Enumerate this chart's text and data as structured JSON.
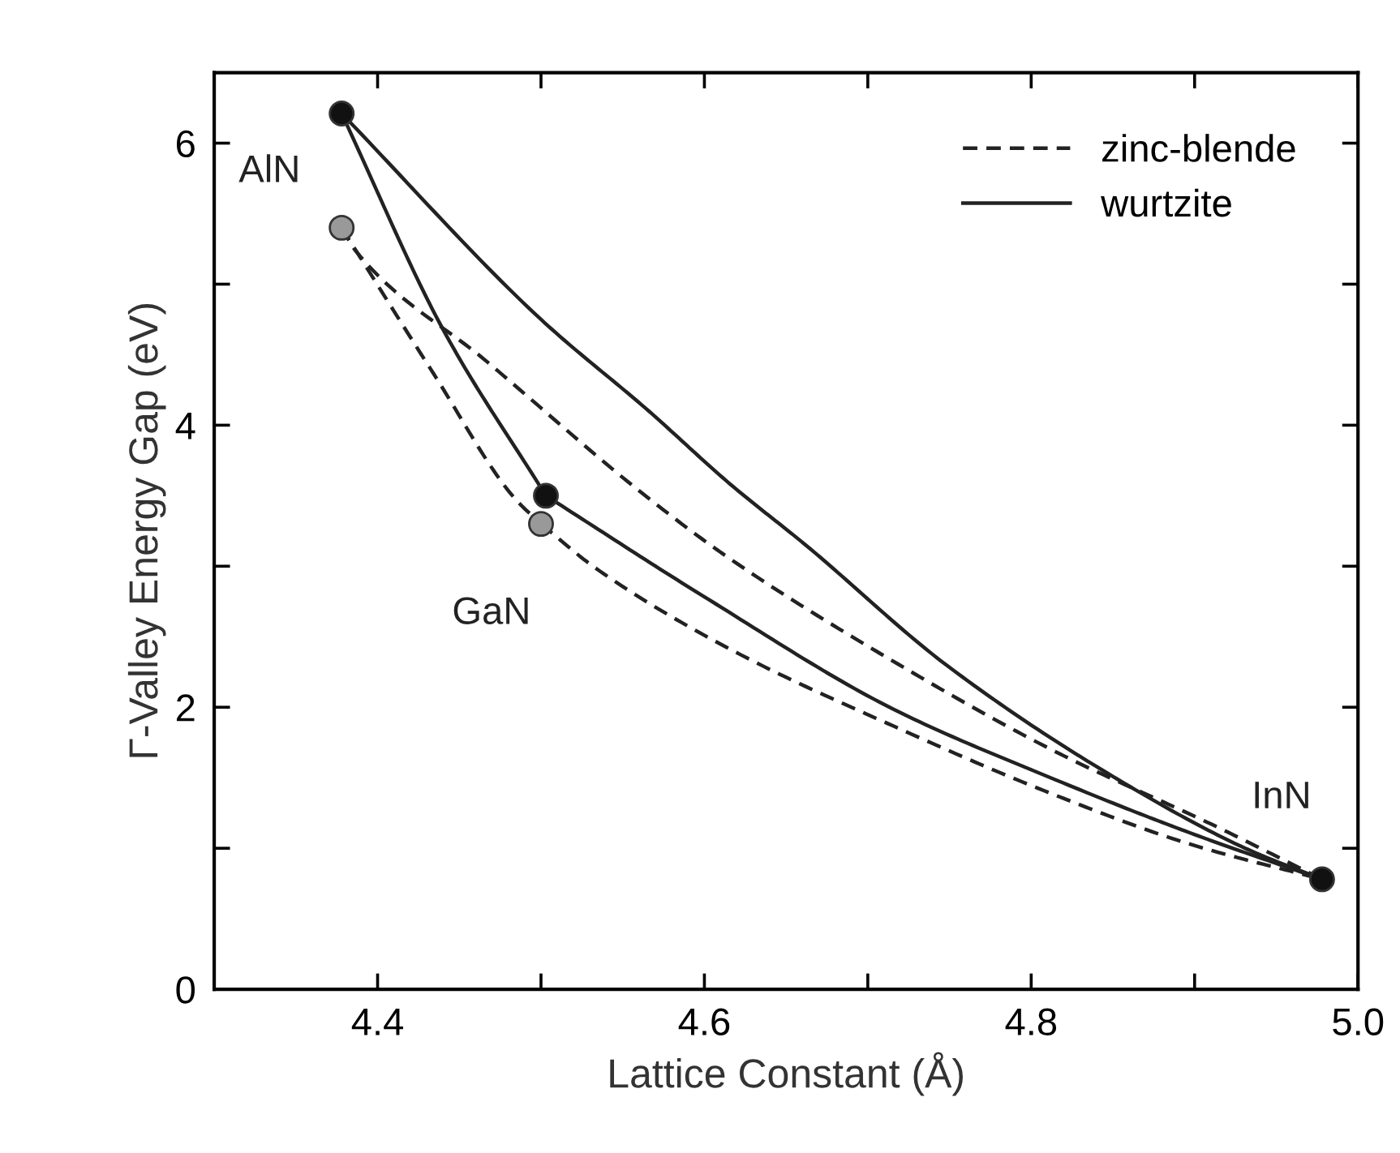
{
  "chart_data": {
    "type": "line",
    "xlabel": "Lattice Constant (Å)",
    "ylabel": "Γ-Valley Energy Gap (eV)",
    "xlim": [
      4.3,
      5.0
    ],
    "ylim": [
      0,
      6.5
    ],
    "xticks": [
      4.4,
      {
        "value": 4.5,
        "label": null
      },
      4.6,
      {
        "value": 4.7,
        "label": null
      },
      4.8,
      {
        "value": 4.9,
        "label": null
      },
      {
        "value": 5.0,
        "label": "5.0"
      }
    ],
    "yticks": [
      0,
      {
        "value": 1,
        "label": null
      },
      2,
      {
        "value": 3,
        "label": null
      },
      4,
      {
        "value": 5,
        "label": null
      },
      6
    ],
    "grid": false,
    "legend": "top right",
    "series": [
      {
        "name": "zinc-blende",
        "color": "#222222",
        "line_style": "dashed",
        "marker": "none",
        "x": [
          4.378,
          4.387,
          4.467,
          4.566,
          4.616,
          4.715,
          4.814,
          4.914,
          4.978
        ],
        "values": [
          5.4,
          5.23,
          4.45,
          3.48,
          3.05,
          2.33,
          1.69,
          1.15,
          0.78
        ]
      },
      {
        "color": "#222222",
        "line_style": "dashed",
        "marker": "none",
        "x": [
          4.378,
          4.434,
          4.484,
          4.5
        ],
        "values": [
          5.4,
          4.37,
          3.48,
          3.3
        ]
      },
      {
        "color": "#222222",
        "line_style": "dashed",
        "marker": "none",
        "x": [
          4.5,
          4.533,
          4.616,
          4.715,
          4.814,
          4.897,
          4.978
        ],
        "values": [
          3.3,
          2.99,
          2.41,
          1.87,
          1.38,
          1.03,
          0.78
        ]
      },
      {
        "name": "wurtzite",
        "color": "#222222",
        "line_style": "solid",
        "marker": "none",
        "x": [
          4.378,
          4.5,
          4.566,
          4.616,
          4.662,
          4.748,
          4.847,
          4.931,
          4.978
        ],
        "values": [
          6.21,
          4.75,
          4.1,
          3.58,
          3.15,
          2.3,
          1.53,
          1.0,
          0.78
        ]
      },
      {
        "color": "#222222",
        "line_style": "solid",
        "marker": "none",
        "x": [
          4.378,
          4.44,
          4.503
        ],
        "values": [
          6.21,
          4.68,
          3.5
        ]
      },
      {
        "color": "#222222",
        "line_style": "solid",
        "marker": "none",
        "x": [
          4.503,
          4.599,
          4.715,
          4.814,
          4.897,
          4.978
        ],
        "values": [
          3.5,
          2.79,
          1.99,
          1.49,
          1.11,
          0.78
        ]
      },
      {
        "type": "scatter",
        "color": "#111111",
        "marker": "circle",
        "x": [
          4.378,
          4.503,
          4.978
        ],
        "values": [
          6.21,
          3.5,
          0.78
        ]
      },
      {
        "type": "scatter",
        "color": "#999999",
        "marker": "circle",
        "x": [
          4.378,
          4.5
        ],
        "values": [
          5.4,
          3.3
        ]
      }
    ],
    "annotations": [
      {
        "text": "AlN",
        "x": 4.378,
        "y": 6.21
      },
      {
        "text": "GaN",
        "x": 4.5,
        "y": 3.3
      },
      {
        "text": "InN",
        "x": 4.978,
        "y": 0.78
      }
    ]
  }
}
